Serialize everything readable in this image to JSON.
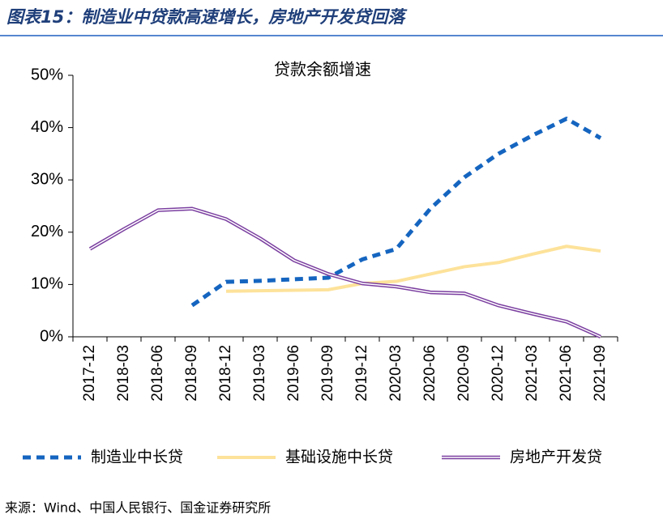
{
  "chart_data": {
    "type": "line",
    "title": "图表15：制造业中贷款高速增长，房地产开发贷回落",
    "subtitle": "贷款余额增速",
    "source": "来源：Wind、中国人民银行、国金证券研究所",
    "categories": [
      "2017-12",
      "2018-03",
      "2018-06",
      "2018-09",
      "2018-12",
      "2019-03",
      "2019-06",
      "2019-09",
      "2019-12",
      "2020-03",
      "2020-06",
      "2020-09",
      "2020-12",
      "2021-03",
      "2021-06",
      "2021-09"
    ],
    "series": [
      {
        "name": "制造业中长贷",
        "color": "#1565c0",
        "style": "dashed",
        "values": [
          null,
          null,
          null,
          6.0,
          10.5,
          10.7,
          11.0,
          11.3,
          14.8,
          16.8,
          24.5,
          30.5,
          35.0,
          38.5,
          41.7,
          38.0
        ]
      },
      {
        "name": "基础设施中长贷",
        "color": "#fde29a",
        "style": "solid",
        "values": [
          null,
          null,
          null,
          null,
          8.7,
          8.8,
          8.9,
          9.0,
          10.2,
          10.6,
          12.0,
          13.4,
          14.2,
          15.8,
          17.3,
          16.4
        ]
      },
      {
        "name": "房地产开发贷",
        "color": "#7b3fa0",
        "style": "double",
        "values": [
          16.8,
          20.6,
          24.2,
          24.5,
          22.5,
          18.8,
          14.6,
          12.0,
          10.2,
          9.6,
          8.5,
          8.3,
          6.0,
          4.4,
          2.9,
          0.0
        ]
      }
    ],
    "ylim": [
      0,
      50
    ],
    "yticks": [
      {
        "value": 0,
        "label": "0%"
      },
      {
        "value": 10,
        "label": "10%"
      },
      {
        "value": 20,
        "label": "20%"
      },
      {
        "value": 30,
        "label": "30%"
      },
      {
        "value": 40,
        "label": "40%"
      },
      {
        "value": 50,
        "label": "50%"
      }
    ],
    "legend": "bottom"
  }
}
